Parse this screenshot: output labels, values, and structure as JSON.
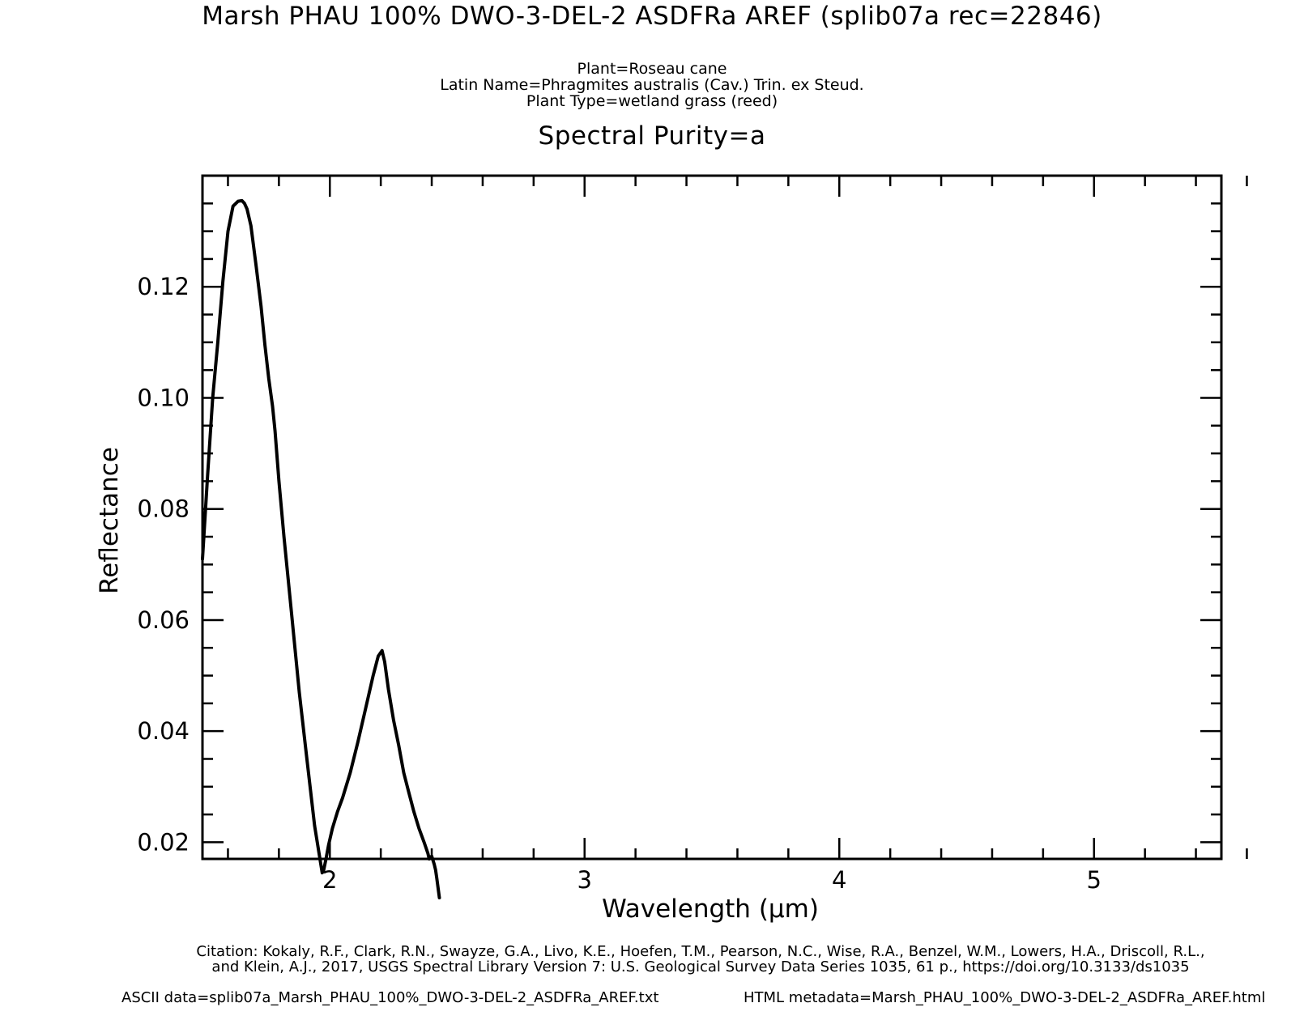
{
  "header": {
    "title": "Marsh PHAU 100%  DWO-3-DEL-2 ASDFRa AREF   (splib07a rec=22846)",
    "plant": "Plant=Roseau cane",
    "latin_prefix": "Latin Name=",
    "latin_genus_species": "Phragmites australis",
    "latin_suffix": " (Cav.) Trin. ex Steud.",
    "plant_type": "Plant Type=wetland grass (reed)",
    "purity": "Spectral Purity=a"
  },
  "footer": {
    "citation_line1": "Citation: Kokaly, R.F., Clark, R.N., Swayze, G.A., Livo, K.E., Hoefen, T.M., Pearson, N.C., Wise, R.A., Benzel, W.M., Lowers, H.A., Driscoll, R.L.,",
    "citation_line2": "and Klein, A.J., 2017, USGS Spectral Library Version 7: U.S. Geological Survey Data Series 1035, 61 p., https://doi.org/10.3133/ds1035",
    "ascii_data": "ASCII data=splib07a_Marsh_PHAU_100%_DWO-3-DEL-2_ASDFRa_AREF.txt",
    "html_metadata": "HTML metadata=Marsh_PHAU_100%_DWO-3-DEL-2_ASDFRa_AREF.html"
  },
  "chart_data": {
    "type": "line",
    "xlabel": "Wavelength (μm)",
    "ylabel": "Reflectance",
    "xlim": [
      1.5,
      5.5
    ],
    "ylim": [
      0.017,
      0.14
    ],
    "xticks": [
      2,
      3,
      4,
      5
    ],
    "xtick_labels": [
      "2",
      "3",
      "4",
      "5"
    ],
    "yticks": [
      0.02,
      0.04,
      0.06,
      0.08,
      0.1,
      0.12
    ],
    "ytick_labels": [
      "0.02",
      "0.04",
      "0.06",
      "0.08",
      "0.10",
      "0.12"
    ],
    "grid": false,
    "line_color": "#000000",
    "series": [
      {
        "x": [
          1.5,
          1.52,
          1.54,
          1.56,
          1.58,
          1.6,
          1.62,
          1.64,
          1.655,
          1.665,
          1.675,
          1.69,
          1.71,
          1.73,
          1.745,
          1.76,
          1.775,
          1.785,
          1.8,
          1.82,
          1.85,
          1.88,
          1.91,
          1.94,
          1.97,
          1.975,
          1.985,
          1.995,
          2.01,
          2.03,
          2.05,
          2.08,
          2.11,
          2.14,
          2.17,
          2.19,
          2.205,
          2.215,
          2.23,
          2.25,
          2.27,
          2.29,
          2.31,
          2.33,
          2.35,
          2.37,
          2.385,
          2.39,
          2.4,
          2.41,
          2.415,
          2.42,
          2.43
        ],
        "y": [
          0.071,
          0.086,
          0.1,
          0.11,
          0.121,
          0.13,
          0.1345,
          0.1354,
          0.1355,
          0.135,
          0.134,
          0.131,
          0.124,
          0.1165,
          0.1095,
          0.1035,
          0.0985,
          0.094,
          0.085,
          0.075,
          0.061,
          0.047,
          0.035,
          0.023,
          0.0145,
          0.0148,
          0.017,
          0.0195,
          0.0225,
          0.0255,
          0.028,
          0.0325,
          0.038,
          0.044,
          0.05,
          0.0535,
          0.0545,
          0.0525,
          0.0475,
          0.042,
          0.0375,
          0.0325,
          0.029,
          0.0255,
          0.0225,
          0.02,
          0.018,
          0.017,
          0.0175,
          0.016,
          0.015,
          0.0135,
          0.01
        ]
      }
    ]
  }
}
